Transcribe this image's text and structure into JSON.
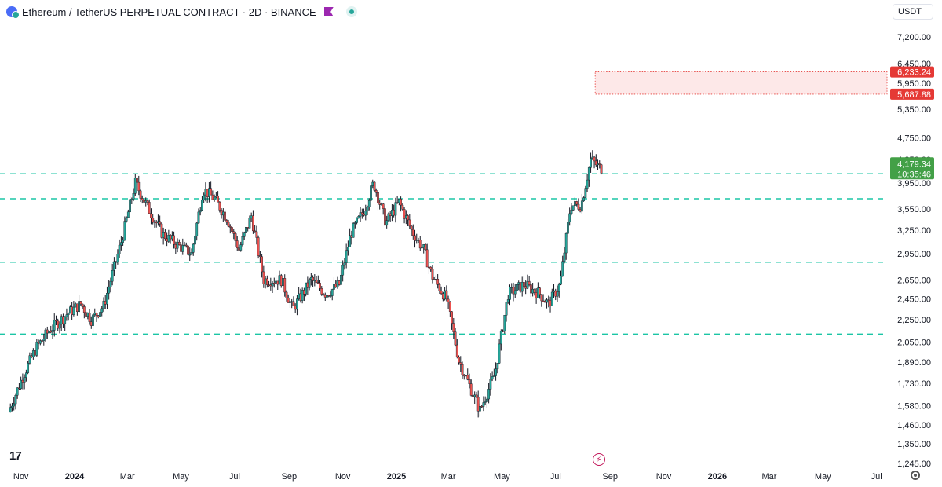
{
  "header": {
    "title": "Ethereum / TetherUS PERPETUAL CONTRACT · 2D · BINANCE",
    "currency": "USDT"
  },
  "colors": {
    "up": "#26a69a",
    "down": "#ef5350",
    "wick": "#131722",
    "levels": "#1bc5a5",
    "zone_fill": "#fde8e8",
    "zone_border": "#e53935",
    "price_label": "#43a047"
  },
  "chart_data": {
    "type": "candlestick",
    "y_scale": "log",
    "y_ticks": [
      1245,
      1350,
      1460,
      1580,
      1730,
      1890,
      2050,
      2250,
      2450,
      2650,
      2950,
      3250,
      3550,
      3950,
      4350,
      4750,
      5350,
      5950,
      6450,
      7200
    ],
    "y_tick_labels": [
      "1,245.00",
      "1,350.00",
      "1,460.00",
      "1,580.00",
      "1,730.00",
      "1,890.00",
      "2,050.00",
      "2,250.00",
      "2,450.00",
      "2,650.00",
      "2,950.00",
      "3,250.00",
      "3,550.00",
      "3,950.00",
      "4,350.00",
      "4,750.00",
      "5,350.00",
      "5,950.00",
      "6,450.00",
      "7,200.00"
    ],
    "x_labels": [
      {
        "text": "Nov",
        "date": "2023-11-01",
        "bold": false
      },
      {
        "text": "2024",
        "date": "2024-01-01",
        "bold": true
      },
      {
        "text": "Mar",
        "date": "2024-03-01",
        "bold": false
      },
      {
        "text": "May",
        "date": "2024-05-01",
        "bold": false
      },
      {
        "text": "Jul",
        "date": "2024-07-01",
        "bold": false
      },
      {
        "text": "Sep",
        "date": "2024-09-01",
        "bold": false
      },
      {
        "text": "Nov",
        "date": "2024-11-01",
        "bold": false
      },
      {
        "text": "2025",
        "date": "2025-01-01",
        "bold": true
      },
      {
        "text": "Mar",
        "date": "2025-03-01",
        "bold": false
      },
      {
        "text": "May",
        "date": "2025-05-01",
        "bold": false
      },
      {
        "text": "Jul",
        "date": "2025-07-01",
        "bold": false
      },
      {
        "text": "Sep",
        "date": "2025-09-01",
        "bold": false
      },
      {
        "text": "Nov",
        "date": "2025-11-01",
        "bold": false
      },
      {
        "text": "2026",
        "date": "2026-01-01",
        "bold": true
      },
      {
        "text": "Mar",
        "date": "2026-03-01",
        "bold": false
      },
      {
        "text": "May",
        "date": "2026-05-01",
        "bold": false
      },
      {
        "text": "Jul",
        "date": "2026-07-01",
        "bold": false
      }
    ],
    "support_levels": [
      4100,
      3700,
      2850,
      2120
    ],
    "target_zone": {
      "from_date": "2025-08-15",
      "top": 6233.24,
      "bottom": 5687.88,
      "top_label": "6,233.24",
      "bottom_label": "5,687.88"
    },
    "current_price": {
      "value": 4179.34,
      "label": "4,179.34",
      "countdown": "10:35:46"
    },
    "path": [
      [
        "2023-10-20",
        1540
      ],
      [
        "2023-11-05",
        1780
      ],
      [
        "2023-11-20",
        2000
      ],
      [
        "2023-12-05",
        2150
      ],
      [
        "2023-12-25",
        2300
      ],
      [
        "2024-01-10",
        2400
      ],
      [
        "2024-01-22",
        2250
      ],
      [
        "2024-02-05",
        2380
      ],
      [
        "2024-02-25",
        3100
      ],
      [
        "2024-03-12",
        3950
      ],
      [
        "2024-03-25",
        3600
      ],
      [
        "2024-04-12",
        3200
      ],
      [
        "2024-04-30",
        3050
      ],
      [
        "2024-05-15",
        2950
      ],
      [
        "2024-05-28",
        3850
      ],
      [
        "2024-06-10",
        3700
      ],
      [
        "2024-06-25",
        3400
      ],
      [
        "2024-07-08",
        3000
      ],
      [
        "2024-07-22",
        3450
      ],
      [
        "2024-08-05",
        2650
      ],
      [
        "2024-08-25",
        2650
      ],
      [
        "2024-09-07",
        2350
      ],
      [
        "2024-09-28",
        2650
      ],
      [
        "2024-10-15",
        2500
      ],
      [
        "2024-10-30",
        2600
      ],
      [
        "2024-11-12",
        3200
      ],
      [
        "2024-11-28",
        3550
      ],
      [
        "2024-12-08",
        3950
      ],
      [
        "2024-12-22",
        3350
      ],
      [
        "2025-01-06",
        3650
      ],
      [
        "2025-01-20",
        3250
      ],
      [
        "2025-02-03",
        3000
      ],
      [
        "2025-02-12",
        2700
      ],
      [
        "2025-03-01",
        2450
      ],
      [
        "2025-03-15",
        1900
      ],
      [
        "2025-04-08",
        1550
      ],
      [
        "2025-04-25",
        1800
      ],
      [
        "2025-05-10",
        2500
      ],
      [
        "2025-05-28",
        2600
      ],
      [
        "2025-06-15",
        2500
      ],
      [
        "2025-06-25",
        2400
      ],
      [
        "2025-07-08",
        2600
      ],
      [
        "2025-07-20",
        3600
      ],
      [
        "2025-08-01",
        3600
      ],
      [
        "2025-08-12",
        4350
      ],
      [
        "2025-08-22",
        4200
      ]
    ]
  }
}
